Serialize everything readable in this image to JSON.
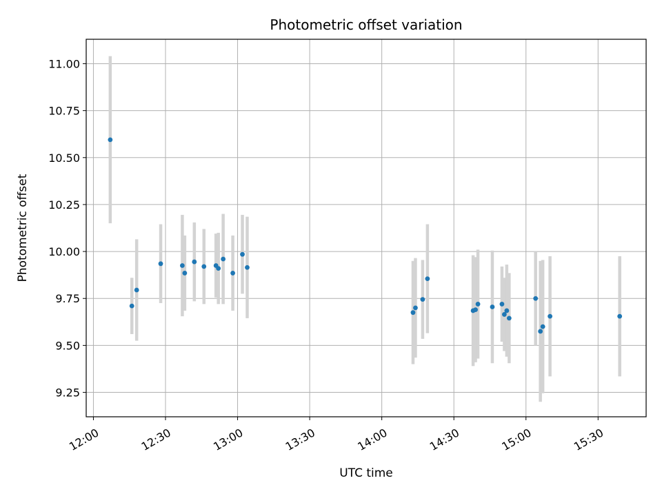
{
  "chart_data": {
    "type": "scatter",
    "title": "Photometric offset variation",
    "xlabel": "UTC time",
    "ylabel": "Photometric offset",
    "x_tick_labels": [
      "12:00",
      "12:30",
      "13:00",
      "13:30",
      "14:00",
      "14:30",
      "15:00",
      "15:30"
    ],
    "x_tick_minutes": [
      720,
      750,
      780,
      810,
      840,
      870,
      900,
      930
    ],
    "y_tick_labels": [
      "9.25",
      "9.50",
      "9.75",
      "10.00",
      "10.25",
      "10.50",
      "10.75",
      "11.00"
    ],
    "y_tick_values": [
      9.25,
      9.5,
      9.75,
      10.0,
      10.25,
      10.5,
      10.75,
      11.0
    ],
    "xlim": [
      "11:57",
      "15:50"
    ],
    "ylim": [
      9.12,
      11.13
    ],
    "grid": true,
    "marker_color": "#1f77b4",
    "errorbar_color": "#d3d3d3",
    "points": [
      {
        "x": "12:07",
        "y": 10.595,
        "yerr": 0.445
      },
      {
        "x": "12:16",
        "y": 9.71,
        "yerr": 0.15
      },
      {
        "x": "12:18",
        "y": 9.795,
        "yerr": 0.27
      },
      {
        "x": "12:28",
        "y": 9.935,
        "yerr": 0.21
      },
      {
        "x": "12:37",
        "y": 9.925,
        "yerr": 0.27
      },
      {
        "x": "12:38",
        "y": 9.885,
        "yerr": 0.2
      },
      {
        "x": "12:42",
        "y": 9.945,
        "yerr": 0.21
      },
      {
        "x": "12:46",
        "y": 9.92,
        "yerr": 0.2
      },
      {
        "x": "12:51",
        "y": 9.925,
        "yerr": 0.17
      },
      {
        "x": "12:52",
        "y": 9.91,
        "yerr": 0.19
      },
      {
        "x": "12:54",
        "y": 9.96,
        "yerr": 0.24
      },
      {
        "x": "12:58",
        "y": 9.885,
        "yerr": 0.2
      },
      {
        "x": "13:02",
        "y": 9.985,
        "yerr": 0.21
      },
      {
        "x": "13:04",
        "y": 9.915,
        "yerr": 0.27
      },
      {
        "x": "14:13",
        "y": 9.675,
        "yerr": 0.275
      },
      {
        "x": "14:14",
        "y": 9.7,
        "yerr": 0.265
      },
      {
        "x": "14:17",
        "y": 9.745,
        "yerr": 0.21
      },
      {
        "x": "14:19",
        "y": 9.855,
        "yerr": 0.29
      },
      {
        "x": "14:38",
        "y": 9.685,
        "yerr": 0.295
      },
      {
        "x": "14:39",
        "y": 9.69,
        "yerr": 0.28
      },
      {
        "x": "14:40",
        "y": 9.72,
        "yerr": 0.29
      },
      {
        "x": "14:46",
        "y": 9.705,
        "yerr": 0.3
      },
      {
        "x": "14:50",
        "y": 9.72,
        "yerr": 0.2
      },
      {
        "x": "14:51",
        "y": 9.665,
        "yerr": 0.195
      },
      {
        "x": "14:52",
        "y": 9.685,
        "yerr": 0.245
      },
      {
        "x": "14:53",
        "y": 9.645,
        "yerr": 0.24
      },
      {
        "x": "15:04",
        "y": 9.75,
        "yerr": 0.25
      },
      {
        "x": "15:06",
        "y": 9.575,
        "yerr": 0.375
      },
      {
        "x": "15:07",
        "y": 9.6,
        "yerr": 0.355
      },
      {
        "x": "15:10",
        "y": 9.655,
        "yerr": 0.32
      },
      {
        "x": "15:39",
        "y": 9.655,
        "yerr": 0.32
      }
    ]
  }
}
